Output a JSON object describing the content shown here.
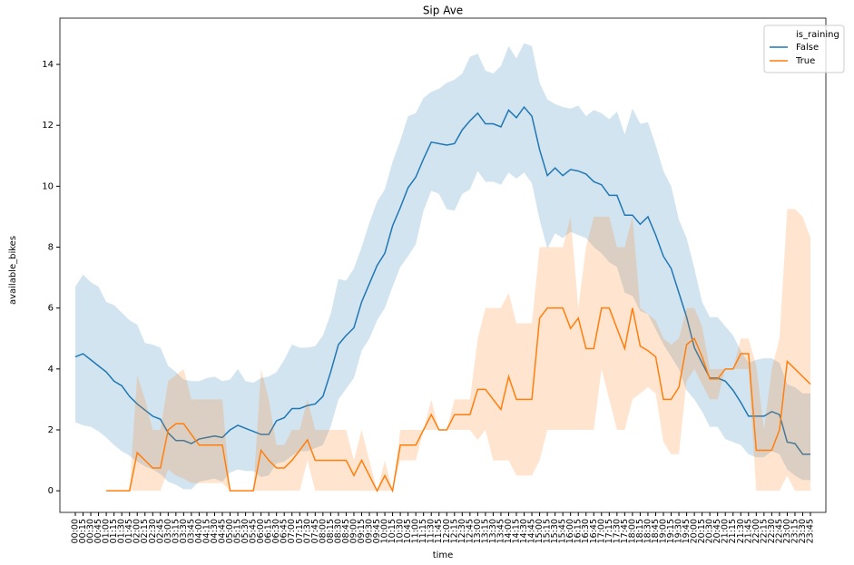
{
  "chart_data": {
    "type": "line",
    "title": "Sip Ave",
    "x_label": "time",
    "y_label": "available_bikes",
    "categories": [
      "00:00",
      "00:15",
      "00:30",
      "00:45",
      "01:00",
      "01:15",
      "01:30",
      "01:45",
      "02:00",
      "02:15",
      "02:30",
      "02:45",
      "03:00",
      "03:15",
      "03:30",
      "03:45",
      "04:00",
      "04:15",
      "04:30",
      "04:45",
      "05:00",
      "05:15",
      "05:30",
      "05:45",
      "06:00",
      "06:15",
      "06:30",
      "06:45",
      "07:00",
      "07:15",
      "07:30",
      "07:45",
      "08:00",
      "08:15",
      "08:30",
      "08:45",
      "09:00",
      "09:15",
      "09:30",
      "09:45",
      "10:00",
      "10:15",
      "10:30",
      "10:45",
      "11:00",
      "11:15",
      "11:30",
      "11:45",
      "12:00",
      "12:15",
      "12:30",
      "12:45",
      "13:00",
      "13:15",
      "13:30",
      "13:45",
      "14:00",
      "14:15",
      "14:30",
      "14:45",
      "15:00",
      "15:15",
      "15:30",
      "15:45",
      "16:00",
      "16:15",
      "16:30",
      "16:45",
      "17:00",
      "17:15",
      "17:30",
      "17:45",
      "18:00",
      "18:15",
      "18:30",
      "18:45",
      "19:00",
      "19:15",
      "19:30",
      "19:45",
      "20:00",
      "20:15",
      "20:30",
      "20:45",
      "21:00",
      "21:15",
      "21:30",
      "21:45",
      "22:00",
      "22:15",
      "22:30",
      "22:45",
      "23:00",
      "23:15",
      "23:30",
      "23:45"
    ],
    "legend_title": "is_raining",
    "legend": "upper right",
    "ylim": [
      -0.71,
      15.52
    ],
    "yticks": [
      0,
      2,
      4,
      6,
      8,
      10,
      12,
      14
    ],
    "series": [
      {
        "name": "False",
        "color": "#1f77b4",
        "values": [
          4.4,
          4.5,
          4.3,
          4.1,
          3.9,
          3.6,
          3.45,
          3.1,
          2.85,
          2.65,
          2.45,
          2.35,
          1.9,
          1.65,
          1.65,
          1.55,
          1.7,
          1.75,
          1.8,
          1.75,
          2.0,
          2.15,
          2.05,
          1.95,
          1.85,
          1.85,
          2.3,
          2.4,
          2.7,
          2.7,
          2.8,
          2.85,
          3.1,
          3.9,
          4.8,
          5.1,
          5.35,
          6.2,
          6.8,
          7.4,
          7.8,
          8.7,
          9.3,
          9.95,
          10.3,
          10.9,
          11.45,
          11.4,
          11.35,
          11.4,
          11.85,
          12.15,
          12.4,
          12.05,
          12.05,
          11.95,
          12.5,
          12.25,
          12.6,
          12.3,
          11.2,
          10.35,
          10.6,
          10.35,
          10.55,
          10.5,
          10.4,
          10.15,
          10.05,
          9.7,
          9.7,
          9.05,
          9.05,
          8.75,
          9.0,
          8.4,
          7.7,
          7.3,
          6.5,
          5.7,
          4.7,
          4.2,
          3.7,
          3.7,
          3.6,
          3.3,
          2.9,
          2.45,
          2.45,
          2.45,
          2.6,
          2.5,
          1.6,
          1.55,
          1.2,
          1.2
        ],
        "upper": [
          6.7,
          7.1,
          6.85,
          6.7,
          6.2,
          6.1,
          5.85,
          5.6,
          5.45,
          4.85,
          4.8,
          4.7,
          4.1,
          3.9,
          3.65,
          3.6,
          3.6,
          3.7,
          3.75,
          3.6,
          3.65,
          4.0,
          3.6,
          3.55,
          3.7,
          3.75,
          3.9,
          4.3,
          4.8,
          4.7,
          4.7,
          4.75,
          5.1,
          5.8,
          6.95,
          6.9,
          7.3,
          8.0,
          8.8,
          9.5,
          9.9,
          10.8,
          11.5,
          12.3,
          12.4,
          12.9,
          13.1,
          13.2,
          13.4,
          13.5,
          13.7,
          14.25,
          14.35,
          13.8,
          13.7,
          13.95,
          14.6,
          14.2,
          14.7,
          14.6,
          13.4,
          12.85,
          12.7,
          12.6,
          12.55,
          12.65,
          12.3,
          12.5,
          12.4,
          12.2,
          12.45,
          11.7,
          12.55,
          12.05,
          12.1,
          11.35,
          10.5,
          10.0,
          8.9,
          8.3,
          7.3,
          6.2,
          5.7,
          5.7,
          5.4,
          5.1,
          4.6,
          4.2,
          4.3,
          4.35,
          4.35,
          4.2,
          3.5,
          3.4,
          3.2,
          3.2
        ],
        "lower": [
          2.25,
          2.15,
          2.1,
          1.95,
          1.75,
          1.5,
          1.3,
          1.15,
          0.95,
          0.8,
          0.7,
          0.55,
          0.3,
          0.2,
          0.05,
          0.05,
          0.3,
          0.35,
          0.4,
          0.3,
          0.6,
          0.7,
          0.65,
          0.65,
          0.45,
          0.5,
          0.9,
          0.95,
          1.15,
          1.3,
          1.3,
          1.4,
          1.5,
          2.1,
          3.0,
          3.35,
          3.7,
          4.6,
          5.0,
          5.6,
          6.0,
          6.7,
          7.35,
          7.7,
          8.1,
          9.2,
          9.85,
          9.75,
          9.25,
          9.2,
          9.75,
          9.9,
          10.5,
          10.15,
          10.15,
          10.05,
          10.45,
          10.25,
          10.45,
          10.1,
          8.9,
          7.95,
          8.45,
          8.3,
          8.5,
          8.4,
          8.3,
          8.0,
          7.8,
          7.5,
          7.35,
          6.5,
          6.4,
          5.9,
          5.8,
          5.3,
          4.8,
          4.4,
          4.0,
          3.3,
          3.0,
          2.6,
          2.1,
          2.1,
          1.7,
          1.6,
          1.5,
          1.2,
          1.1,
          1.1,
          1.3,
          1.2,
          0.7,
          0.5,
          0.35,
          0.35
        ]
      },
      {
        "name": "True",
        "color": "#ff7f0e",
        "values": [
          null,
          null,
          null,
          null,
          0,
          0,
          0,
          0,
          1.25,
          1.0,
          0.75,
          0.75,
          2.0,
          2.2,
          2.2,
          1.85,
          1.5,
          1.5,
          1.5,
          1.5,
          0,
          0,
          0,
          0,
          1.33,
          1.0,
          0.75,
          0.75,
          1.0,
          1.33,
          1.67,
          1.0,
          1.0,
          1.0,
          1.0,
          1.0,
          0.5,
          1.0,
          0.5,
          0,
          0.5,
          0,
          1.5,
          1.5,
          1.5,
          2.0,
          2.5,
          2.0,
          2.0,
          2.5,
          2.5,
          2.5,
          3.33,
          3.33,
          3.0,
          2.67,
          3.75,
          3.0,
          3.0,
          3.0,
          5.67,
          6.0,
          6.0,
          6.0,
          5.33,
          5.67,
          4.67,
          4.67,
          6.0,
          6.0,
          5.33,
          4.67,
          6.0,
          4.75,
          4.6,
          4.4,
          3.0,
          3.0,
          3.4,
          4.8,
          5.0,
          4.4,
          3.67,
          3.67,
          4.0,
          4.0,
          4.5,
          4.5,
          1.33,
          1.33,
          1.33,
          2.0,
          4.25,
          4.0,
          3.75,
          3.5
        ],
        "upper": [
          null,
          null,
          null,
          null,
          0,
          0,
          0,
          0,
          3.8,
          3.0,
          2.0,
          2.0,
          3.6,
          3.8,
          4.0,
          3.0,
          3.0,
          3.0,
          3.0,
          3.0,
          0,
          0,
          0,
          0,
          4.0,
          3.0,
          1.5,
          1.5,
          2.0,
          2.0,
          3.0,
          2.0,
          2.0,
          2.0,
          2.0,
          2.0,
          1.0,
          2.0,
          1.0,
          0,
          1.0,
          0,
          2.0,
          2.0,
          2.0,
          2.0,
          3.0,
          2.0,
          2.0,
          3.0,
          3.0,
          3.0,
          5.0,
          6.0,
          6.0,
          6.0,
          6.5,
          5.5,
          5.5,
          5.5,
          8.0,
          8.0,
          8.0,
          8.0,
          9.0,
          6.0,
          8.0,
          9.0,
          9.0,
          9.0,
          8.0,
          8.0,
          9.0,
          6.0,
          5.8,
          5.6,
          5.0,
          4.8,
          5.0,
          6.0,
          6.0,
          5.4,
          4.0,
          4.0,
          4.0,
          4.0,
          5.0,
          5.0,
          4.1,
          2.0,
          4.0,
          5.0,
          9.25,
          9.25,
          9.0,
          8.3
        ],
        "lower": [
          null,
          null,
          null,
          null,
          0,
          0,
          0,
          0,
          0,
          0,
          0,
          0,
          0.7,
          0.5,
          0.4,
          0.25,
          0.25,
          0.25,
          0.25,
          0.25,
          0,
          0,
          0,
          0,
          0,
          0,
          0,
          0,
          0,
          0,
          1.0,
          0,
          0,
          0,
          0,
          0,
          0,
          0,
          0,
          0,
          0,
          0,
          1.0,
          1.0,
          1.0,
          2.0,
          2.0,
          2.0,
          2.0,
          2.0,
          2.0,
          2.0,
          1.67,
          2.0,
          1.0,
          1.0,
          1.0,
          0.5,
          0.5,
          0.5,
          1.0,
          2.0,
          2.0,
          2.0,
          2.0,
          2.0,
          2.0,
          2.0,
          4.0,
          3.0,
          2.0,
          2.0,
          3.0,
          3.2,
          3.4,
          3.2,
          1.6,
          1.2,
          1.2,
          3.6,
          4.0,
          3.5,
          3.0,
          3.0,
          4.0,
          4.0,
          4.0,
          4.0,
          0,
          0,
          0,
          0,
          0.5,
          0,
          0,
          0
        ]
      }
    ]
  }
}
